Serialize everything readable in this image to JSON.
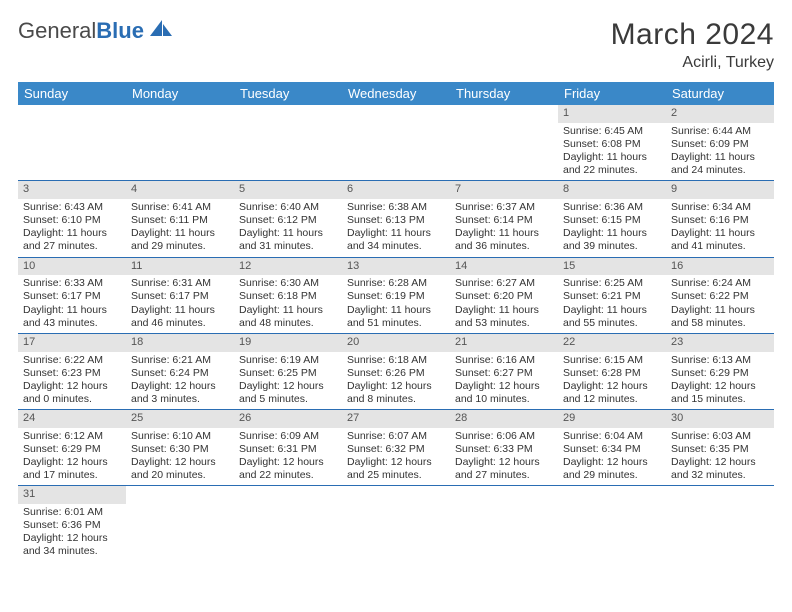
{
  "brand": {
    "part1": "General",
    "part2": "Blue"
  },
  "title": "March 2024",
  "location": "Acirli, Turkey",
  "colors": {
    "header_bg": "#3a88c8",
    "header_fg": "#ffffff",
    "daynum_bg": "#e4e4e4",
    "rule": "#2a6db3",
    "brand_blue": "#2a6db3"
  },
  "weekdays": [
    "Sunday",
    "Monday",
    "Tuesday",
    "Wednesday",
    "Thursday",
    "Friday",
    "Saturday"
  ],
  "weeks": [
    [
      {
        "n": "",
        "sr": "",
        "ss": "",
        "dl": ""
      },
      {
        "n": "",
        "sr": "",
        "ss": "",
        "dl": ""
      },
      {
        "n": "",
        "sr": "",
        "ss": "",
        "dl": ""
      },
      {
        "n": "",
        "sr": "",
        "ss": "",
        "dl": ""
      },
      {
        "n": "",
        "sr": "",
        "ss": "",
        "dl": ""
      },
      {
        "n": "1",
        "sr": "Sunrise: 6:45 AM",
        "ss": "Sunset: 6:08 PM",
        "dl": "Daylight: 11 hours and 22 minutes."
      },
      {
        "n": "2",
        "sr": "Sunrise: 6:44 AM",
        "ss": "Sunset: 6:09 PM",
        "dl": "Daylight: 11 hours and 24 minutes."
      }
    ],
    [
      {
        "n": "3",
        "sr": "Sunrise: 6:43 AM",
        "ss": "Sunset: 6:10 PM",
        "dl": "Daylight: 11 hours and 27 minutes."
      },
      {
        "n": "4",
        "sr": "Sunrise: 6:41 AM",
        "ss": "Sunset: 6:11 PM",
        "dl": "Daylight: 11 hours and 29 minutes."
      },
      {
        "n": "5",
        "sr": "Sunrise: 6:40 AM",
        "ss": "Sunset: 6:12 PM",
        "dl": "Daylight: 11 hours and 31 minutes."
      },
      {
        "n": "6",
        "sr": "Sunrise: 6:38 AM",
        "ss": "Sunset: 6:13 PM",
        "dl": "Daylight: 11 hours and 34 minutes."
      },
      {
        "n": "7",
        "sr": "Sunrise: 6:37 AM",
        "ss": "Sunset: 6:14 PM",
        "dl": "Daylight: 11 hours and 36 minutes."
      },
      {
        "n": "8",
        "sr": "Sunrise: 6:36 AM",
        "ss": "Sunset: 6:15 PM",
        "dl": "Daylight: 11 hours and 39 minutes."
      },
      {
        "n": "9",
        "sr": "Sunrise: 6:34 AM",
        "ss": "Sunset: 6:16 PM",
        "dl": "Daylight: 11 hours and 41 minutes."
      }
    ],
    [
      {
        "n": "10",
        "sr": "Sunrise: 6:33 AM",
        "ss": "Sunset: 6:17 PM",
        "dl": "Daylight: 11 hours and 43 minutes."
      },
      {
        "n": "11",
        "sr": "Sunrise: 6:31 AM",
        "ss": "Sunset: 6:17 PM",
        "dl": "Daylight: 11 hours and 46 minutes."
      },
      {
        "n": "12",
        "sr": "Sunrise: 6:30 AM",
        "ss": "Sunset: 6:18 PM",
        "dl": "Daylight: 11 hours and 48 minutes."
      },
      {
        "n": "13",
        "sr": "Sunrise: 6:28 AM",
        "ss": "Sunset: 6:19 PM",
        "dl": "Daylight: 11 hours and 51 minutes."
      },
      {
        "n": "14",
        "sr": "Sunrise: 6:27 AM",
        "ss": "Sunset: 6:20 PM",
        "dl": "Daylight: 11 hours and 53 minutes."
      },
      {
        "n": "15",
        "sr": "Sunrise: 6:25 AM",
        "ss": "Sunset: 6:21 PM",
        "dl": "Daylight: 11 hours and 55 minutes."
      },
      {
        "n": "16",
        "sr": "Sunrise: 6:24 AM",
        "ss": "Sunset: 6:22 PM",
        "dl": "Daylight: 11 hours and 58 minutes."
      }
    ],
    [
      {
        "n": "17",
        "sr": "Sunrise: 6:22 AM",
        "ss": "Sunset: 6:23 PM",
        "dl": "Daylight: 12 hours and 0 minutes."
      },
      {
        "n": "18",
        "sr": "Sunrise: 6:21 AM",
        "ss": "Sunset: 6:24 PM",
        "dl": "Daylight: 12 hours and 3 minutes."
      },
      {
        "n": "19",
        "sr": "Sunrise: 6:19 AM",
        "ss": "Sunset: 6:25 PM",
        "dl": "Daylight: 12 hours and 5 minutes."
      },
      {
        "n": "20",
        "sr": "Sunrise: 6:18 AM",
        "ss": "Sunset: 6:26 PM",
        "dl": "Daylight: 12 hours and 8 minutes."
      },
      {
        "n": "21",
        "sr": "Sunrise: 6:16 AM",
        "ss": "Sunset: 6:27 PM",
        "dl": "Daylight: 12 hours and 10 minutes."
      },
      {
        "n": "22",
        "sr": "Sunrise: 6:15 AM",
        "ss": "Sunset: 6:28 PM",
        "dl": "Daylight: 12 hours and 12 minutes."
      },
      {
        "n": "23",
        "sr": "Sunrise: 6:13 AM",
        "ss": "Sunset: 6:29 PM",
        "dl": "Daylight: 12 hours and 15 minutes."
      }
    ],
    [
      {
        "n": "24",
        "sr": "Sunrise: 6:12 AM",
        "ss": "Sunset: 6:29 PM",
        "dl": "Daylight: 12 hours and 17 minutes."
      },
      {
        "n": "25",
        "sr": "Sunrise: 6:10 AM",
        "ss": "Sunset: 6:30 PM",
        "dl": "Daylight: 12 hours and 20 minutes."
      },
      {
        "n": "26",
        "sr": "Sunrise: 6:09 AM",
        "ss": "Sunset: 6:31 PM",
        "dl": "Daylight: 12 hours and 22 minutes."
      },
      {
        "n": "27",
        "sr": "Sunrise: 6:07 AM",
        "ss": "Sunset: 6:32 PM",
        "dl": "Daylight: 12 hours and 25 minutes."
      },
      {
        "n": "28",
        "sr": "Sunrise: 6:06 AM",
        "ss": "Sunset: 6:33 PM",
        "dl": "Daylight: 12 hours and 27 minutes."
      },
      {
        "n": "29",
        "sr": "Sunrise: 6:04 AM",
        "ss": "Sunset: 6:34 PM",
        "dl": "Daylight: 12 hours and 29 minutes."
      },
      {
        "n": "30",
        "sr": "Sunrise: 6:03 AM",
        "ss": "Sunset: 6:35 PM",
        "dl": "Daylight: 12 hours and 32 minutes."
      }
    ],
    [
      {
        "n": "31",
        "sr": "Sunrise: 6:01 AM",
        "ss": "Sunset: 6:36 PM",
        "dl": "Daylight: 12 hours and 34 minutes."
      },
      {
        "n": "",
        "sr": "",
        "ss": "",
        "dl": ""
      },
      {
        "n": "",
        "sr": "",
        "ss": "",
        "dl": ""
      },
      {
        "n": "",
        "sr": "",
        "ss": "",
        "dl": ""
      },
      {
        "n": "",
        "sr": "",
        "ss": "",
        "dl": ""
      },
      {
        "n": "",
        "sr": "",
        "ss": "",
        "dl": ""
      },
      {
        "n": "",
        "sr": "",
        "ss": "",
        "dl": ""
      }
    ]
  ]
}
